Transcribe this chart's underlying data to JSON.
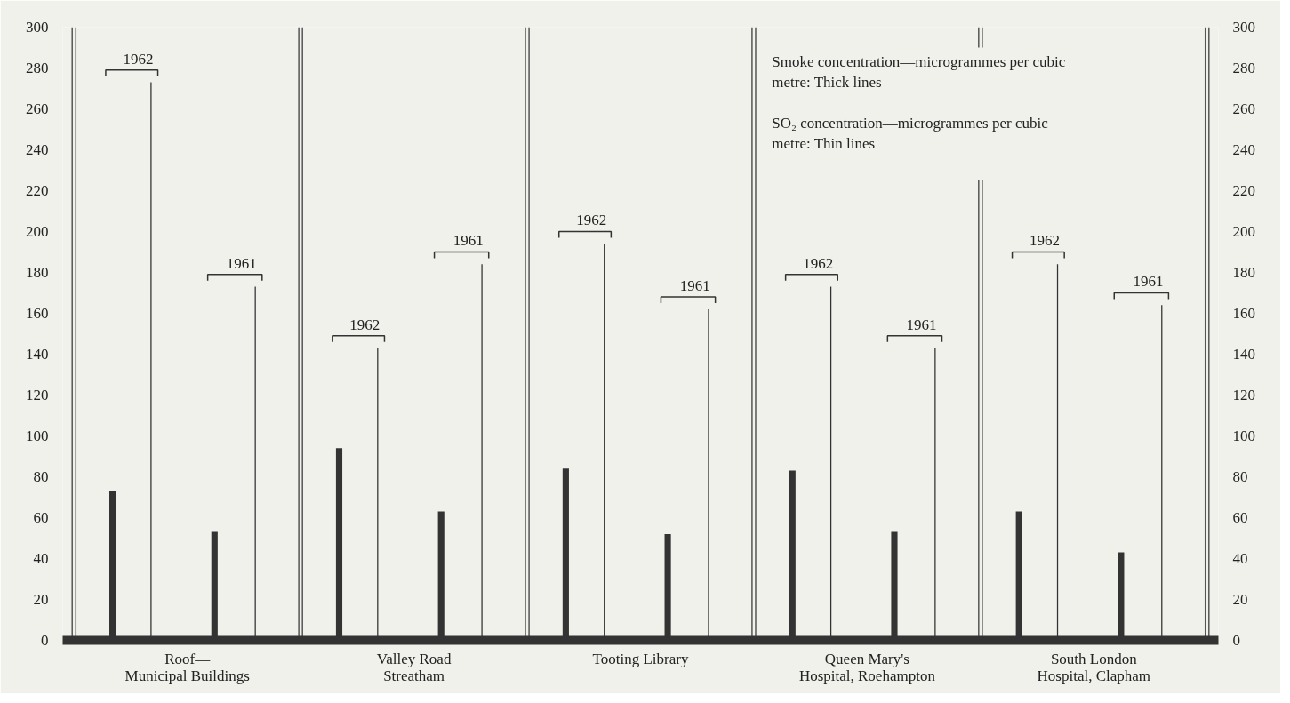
{
  "chart_data": {
    "type": "bar",
    "categories": [
      "Roof—\nMunicipal Buildings",
      "Valley Road\nStreatham",
      "Tooting Library",
      "Queen Mary's\nHospital, Roehampton",
      "South London\nHospital, Clapham"
    ],
    "series": [
      {
        "color": "#333333",
        "values": [
          73,
          94,
          84,
          83,
          63
        ]
      },
      {
        "name": "1962",
        "color": "#333333",
        "values": [
          273,
          143,
          194,
          173,
          184
        ]
      },
      {
        "color": "#333333",
        "values": [
          53,
          63,
          52,
          53,
          43
        ]
      },
      {
        "name": "1961",
        "color": "#333333",
        "values": [
          173,
          184,
          162,
          143,
          164
        ]
      }
    ],
    "annotations": [
      "Smoke concentration—microgrammes per cubic\n   metre: Thick lines",
      "SO₂ concentration—microgrammes per cubic\n   metre: Thin lines"
    ],
    "ylim": [
      0,
      300
    ],
    "yticks": [
      0,
      20,
      40,
      60,
      80,
      100,
      120,
      140,
      160,
      180,
      200,
      220,
      240,
      260,
      280,
      300
    ],
    "y2lim": [
      0,
      300
    ],
    "y2ticks": [
      0,
      20,
      40,
      60,
      80,
      100,
      120,
      140,
      160,
      180,
      200,
      220,
      240,
      260,
      280,
      300
    ],
    "grid": false,
    "legend": false
  }
}
